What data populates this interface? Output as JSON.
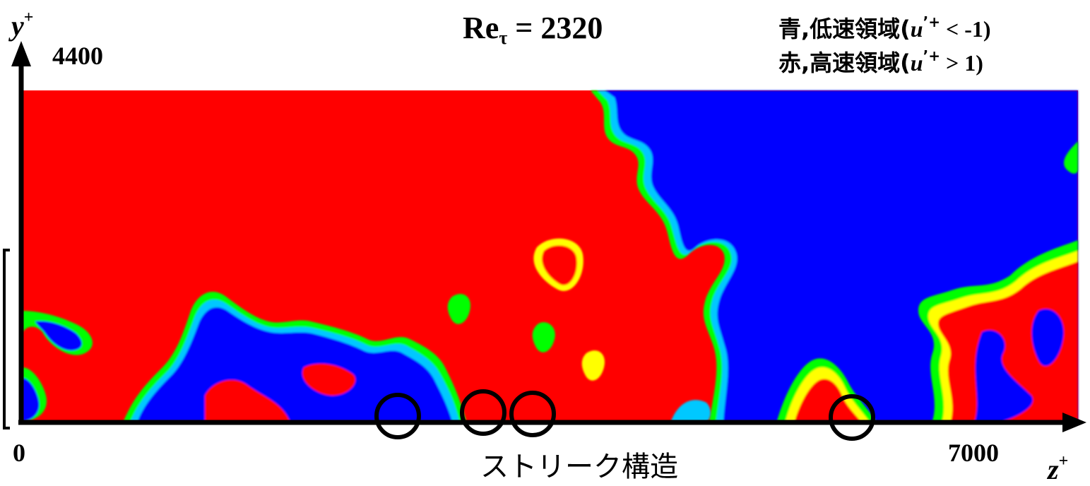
{
  "title": {
    "main": "Re",
    "subscript": "τ",
    "value": " = 2320"
  },
  "legend": {
    "blue": {
      "prefix": "青,低速領域(",
      "var": "u",
      "sup": "’+",
      "cond": " < -1)"
    },
    "red": {
      "prefix": "赤,高速領域(",
      "var": "u",
      "sup": "’+",
      "cond": " >  1)"
    }
  },
  "axes": {
    "y": {
      "label": "y",
      "sup": "+",
      "max_tick": "4400"
    },
    "z": {
      "label": "z",
      "sup": "+",
      "zero_tick": "0",
      "max_tick": "7000"
    }
  },
  "annotation": {
    "caption": "ストリーク構造"
  },
  "colors": {
    "low_speed": "#0000ff",
    "high_speed": "#ff0000",
    "intermediate": [
      "#00c8ff",
      "#00ff00",
      "#ffff00",
      "#ffa500"
    ],
    "axis": "#000000"
  }
}
